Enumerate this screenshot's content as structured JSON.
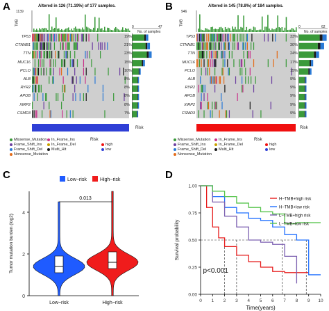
{
  "panels": {
    "A": {
      "letter": "A",
      "title": "Altered in 126 (71.19%) of 177 samples.",
      "tmb_axis_max": "1139",
      "tmb_label": "TMB",
      "bar_axis_label": "No. of samples",
      "bar_axis_ticks": [
        "0",
        "47"
      ],
      "genes": [
        "TP53",
        "CTNNB1",
        "TTN",
        "MUC16",
        "PCLO",
        "ALB",
        "RYR2",
        "APOB",
        "XIRP2",
        "CSMD3"
      ],
      "percents": [
        "19%",
        "21%",
        "23%",
        "15%",
        "10%",
        "8%",
        "8%",
        "8%",
        "8%",
        "7%"
      ],
      "risk_label": "Risk",
      "risk_bar_color": "#2f3fd6"
    },
    "B": {
      "letter": "B",
      "title": "Altered in 145 (78.8%) of 184 samples.",
      "tmb_axis_max": "946",
      "tmb_label": "TMB",
      "bar_axis_label": "No. of samples",
      "bar_axis_ticks": [
        "0",
        "62"
      ],
      "genes": [
        "TP53",
        "CTNNB1",
        "TTN",
        "MUC16",
        "PCLO",
        "ALB",
        "RYR2",
        "APOB",
        "XIRP2",
        "CSMD3"
      ],
      "percents": [
        "33%",
        "30%",
        "24%",
        "17%",
        "15%",
        "9%",
        "9%",
        "9%",
        "9%",
        "9%"
      ],
      "risk_label": "Risk",
      "risk_bar_color": "#f01010"
    },
    "legend_ab": {
      "items": [
        "Missense_Mutation",
        "Frame_Shift_Ins",
        "Frame_Shift_Del",
        "Nonsense_Mutation",
        "Nonsense_Mutation",
        "In_Frame_Ins",
        "In_Frame_Del",
        "Multi_Hit",
        "In_Frame_Ins",
        "In_Frame_Del",
        "Multi_Hit"
      ],
      "risk_title": "Risk",
      "risk_levels": [
        "high",
        "low"
      ]
    },
    "C": {
      "letter": "C",
      "legend": [
        "Low−risk",
        "High−risk"
      ],
      "ylabel": "Tumor mutation burden (log2)",
      "pvalue": "0.013",
      "colors": {
        "low": "#1f5bff",
        "high": "#f01c1c"
      }
    },
    "D": {
      "letter": "D",
      "xlabel": "Time(years)",
      "ylabel": "Survival probability",
      "pvalue": "p<0.001",
      "legend": [
        "H−TMB+high risk",
        "H−TMB+low risk",
        "L−TMB+high risk",
        "L−TMB+low risk"
      ],
      "colors": [
        "#e61c1c",
        "#1f6fff",
        "#7b5fb0",
        "#55c44a"
      ]
    }
  },
  "chart_data": [
    {
      "type": "box",
      "title": "",
      "categories": [
        "Low−risk",
        "High−risk"
      ],
      "ylabel": "Tumor mutation burden (log2)",
      "ylim": [
        0,
        5
      ],
      "yticks": [
        0,
        2,
        4
      ],
      "series": [
        {
          "name": "Low−risk",
          "median": 1.4,
          "q1": 1.1,
          "q3": 1.9,
          "min": 0.0,
          "max": 4.5
        },
        {
          "name": "High−risk",
          "median": 1.6,
          "q1": 1.3,
          "q3": 2.1,
          "min": 0.0,
          "max": 5.0
        }
      ],
      "annotation": "0.013"
    },
    {
      "type": "line",
      "title": "",
      "xlabel": "Time(years)",
      "ylabel": "Survival probability",
      "xlim": [
        0,
        10
      ],
      "ylim": [
        0,
        1
      ],
      "xticks": [
        0,
        1,
        2,
        3,
        4,
        5,
        6,
        7,
        8,
        9,
        10
      ],
      "yticks": [
        "0.00",
        "0.25",
        "0.50",
        "0.75",
        "1.00"
      ],
      "series": [
        {
          "name": "H−TMB+high risk",
          "x": [
            0,
            0.5,
            1,
            1.5,
            2,
            3,
            4,
            5,
            6,
            7,
            9
          ],
          "y": [
            1.0,
            0.8,
            0.62,
            0.52,
            0.44,
            0.36,
            0.3,
            0.25,
            0.21,
            0.2,
            0.2
          ]
        },
        {
          "name": "H−TMB+low risk",
          "x": [
            0,
            1,
            2,
            3,
            4,
            5,
            6,
            7,
            8,
            9,
            10
          ],
          "y": [
            1.0,
            0.9,
            0.8,
            0.75,
            0.7,
            0.68,
            0.62,
            0.55,
            0.5,
            0.18,
            0.18
          ]
        },
        {
          "name": "L−TMB+high risk",
          "x": [
            0,
            1,
            2,
            3,
            4,
            5,
            6,
            7,
            8
          ],
          "y": [
            1.0,
            0.85,
            0.72,
            0.62,
            0.5,
            0.48,
            0.46,
            0.35,
            0.1
          ]
        },
        {
          "name": "L−TMB+low risk",
          "x": [
            0,
            1,
            2,
            3,
            4,
            5,
            6,
            7,
            8,
            9,
            10
          ],
          "y": [
            1.0,
            0.95,
            0.9,
            0.84,
            0.8,
            0.76,
            0.74,
            0.65,
            0.66,
            0.66,
            0.66
          ]
        }
      ],
      "median_markers_x": [
        2,
        3,
        6.8,
        8.8
      ],
      "annotation": "p<0.001"
    }
  ]
}
